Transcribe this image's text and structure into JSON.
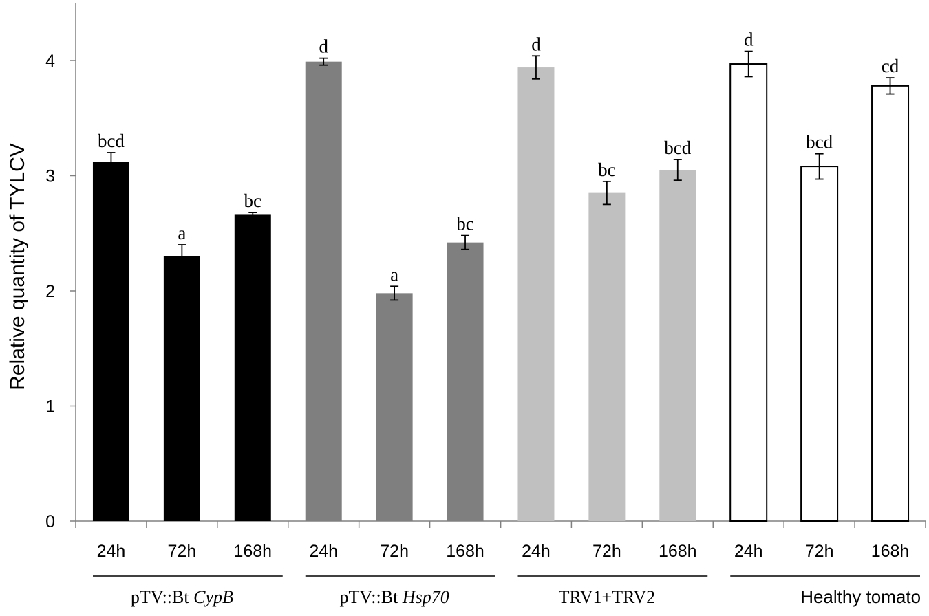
{
  "chart_data": {
    "type": "bar",
    "ylabel": "Relative quantity of TYLCV",
    "ylim": [
      0,
      4.5
    ],
    "yticks": [
      "0",
      "1",
      "2",
      "3",
      "4"
    ],
    "grid": false,
    "legend": "none",
    "groups": [
      {
        "label_plain": "pTV::Bt ",
        "label_italic": "CypB",
        "color": "#000000",
        "categories": [
          "24h",
          "72h",
          "168h"
        ],
        "values": [
          3.12,
          2.3,
          2.66
        ],
        "errors": [
          0.08,
          0.1,
          0.02
        ],
        "significance": [
          "bcd",
          "a",
          "bc"
        ]
      },
      {
        "label_plain": "pTV::Bt ",
        "label_italic": "Hsp70",
        "color": "#7f7f7f",
        "categories": [
          "24h",
          "72h",
          "168h"
        ],
        "values": [
          3.99,
          1.98,
          2.42
        ],
        "errors": [
          0.03,
          0.06,
          0.06
        ],
        "significance": [
          "d",
          "a",
          "bc"
        ]
      },
      {
        "label_plain": "TRV1+TRV2",
        "label_italic": "",
        "color": "#c0c0c0",
        "categories": [
          "24h",
          "72h",
          "168h"
        ],
        "values": [
          3.94,
          2.85,
          3.05
        ],
        "errors": [
          0.1,
          0.1,
          0.09
        ],
        "significance": [
          "d",
          "bc",
          "bcd"
        ]
      },
      {
        "label_plain": "Healthy tomato",
        "label_italic": "",
        "color": "#ffffff",
        "categories": [
          "24h",
          "72h",
          "168h"
        ],
        "values": [
          3.97,
          3.08,
          3.78
        ],
        "errors": [
          0.11,
          0.11,
          0.07
        ],
        "significance": [
          "d",
          "bcd",
          "cd"
        ]
      }
    ]
  }
}
